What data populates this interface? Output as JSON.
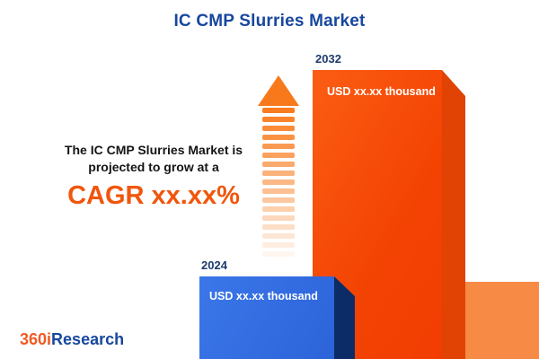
{
  "header": {
    "title": "IC CMP Slurries Market"
  },
  "description": {
    "line1": "The IC CMP Slurries Market is",
    "line2": "projected to grow at a",
    "cagr": "CAGR xx.xx%"
  },
  "bars": [
    {
      "year": "2024",
      "value_label": "USD xx.xx thousand",
      "color": "#2f6ce0"
    },
    {
      "year": "2032",
      "value_label": "USD xx.xx thousand",
      "color": "#f34303"
    }
  ],
  "logo": {
    "prefix": "360i",
    "suffix": "Research"
  },
  "chart_data": {
    "type": "bar",
    "title": "IC CMP Slurries Market",
    "categories": [
      "2024",
      "2032"
    ],
    "values": [
      "xx.xx",
      "xx.xx"
    ],
    "value_labels": [
      "USD xx.xx thousand",
      "USD xx.xx thousand"
    ],
    "ylabel": "USD thousand",
    "annotations": [
      "The IC CMP Slurries Market is projected to grow at a CAGR xx.xx%"
    ],
    "legend_position": "none",
    "grid": false,
    "colors": {
      "2024": "#2f6ce0",
      "2032": "#f34303",
      "accent": "#f0560c",
      "title": "#17479e"
    }
  }
}
